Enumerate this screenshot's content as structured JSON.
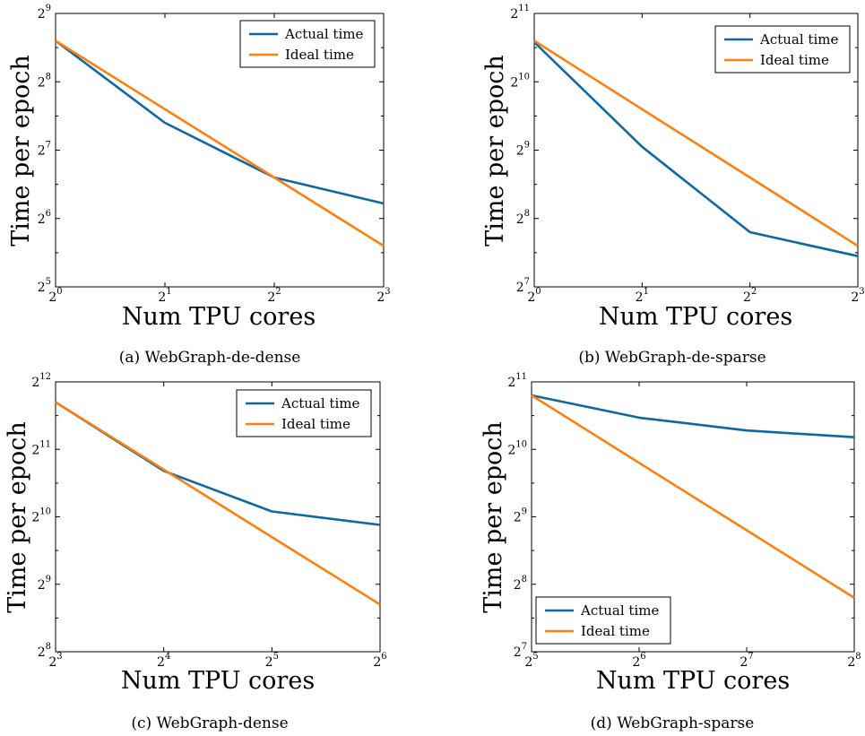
{
  "colors": {
    "actual": "#0f67a3",
    "ideal": "#fd7f0e",
    "axis": "#000000"
  },
  "chart_data": [
    {
      "type": "line",
      "caption": "(a) WebGraph-de-dense",
      "xlabel": "Num TPU cores",
      "ylabel": "Time per epoch",
      "xscale": "log2",
      "yscale": "log2",
      "xlim_exp": [
        0,
        3
      ],
      "ylim_exp": [
        5,
        9
      ],
      "xticks": [
        {
          "base": "2",
          "exp": "0"
        },
        {
          "base": "2",
          "exp": "1"
        },
        {
          "base": "2",
          "exp": "2"
        },
        {
          "base": "2",
          "exp": "3"
        }
      ],
      "yticks": [
        {
          "base": "2",
          "exp": "5"
        },
        {
          "base": "2",
          "exp": "6"
        },
        {
          "base": "2",
          "exp": "7"
        },
        {
          "base": "2",
          "exp": "8"
        },
        {
          "base": "2",
          "exp": "9"
        }
      ],
      "x_exp": [
        0,
        1,
        2,
        3
      ],
      "series": [
        {
          "name": "Actual time",
          "y_exp": [
            8.6,
            7.4,
            6.6,
            6.22
          ]
        },
        {
          "name": "Ideal time",
          "y_exp": [
            8.6,
            7.6,
            6.6,
            5.6
          ]
        }
      ],
      "legend": "upper right"
    },
    {
      "type": "line",
      "caption": "(b) WebGraph-de-sparse",
      "xlabel": "Num TPU cores",
      "ylabel": "Time per epoch",
      "xscale": "log2",
      "yscale": "log2",
      "xlim_exp": [
        0,
        3
      ],
      "ylim_exp": [
        7,
        11
      ],
      "xticks": [
        {
          "base": "2",
          "exp": "0"
        },
        {
          "base": "2",
          "exp": "1"
        },
        {
          "base": "2",
          "exp": "2"
        },
        {
          "base": "2",
          "exp": "3"
        }
      ],
      "yticks": [
        {
          "base": "2",
          "exp": "7"
        },
        {
          "base": "2",
          "exp": "8"
        },
        {
          "base": "2",
          "exp": "9"
        },
        {
          "base": "2",
          "exp": "10"
        },
        {
          "base": "2",
          "exp": "11"
        }
      ],
      "x_exp": [
        0,
        1,
        2,
        3
      ],
      "series": [
        {
          "name": "Actual time",
          "y_exp": [
            10.58,
            9.05,
            7.8,
            7.45
          ]
        },
        {
          "name": "Ideal time",
          "y_exp": [
            10.6,
            9.6,
            8.6,
            7.6
          ]
        }
      ],
      "legend": "upper right"
    },
    {
      "type": "line",
      "caption": "(c) WebGraph-dense",
      "xlabel": "Num TPU cores",
      "ylabel": "Time per epoch",
      "xscale": "log2",
      "yscale": "log2",
      "xlim_exp": [
        3,
        6
      ],
      "ylim_exp": [
        8,
        12
      ],
      "xticks": [
        {
          "base": "2",
          "exp": "3"
        },
        {
          "base": "2",
          "exp": "4"
        },
        {
          "base": "2",
          "exp": "5"
        },
        {
          "base": "2",
          "exp": "6"
        }
      ],
      "yticks": [
        {
          "base": "2",
          "exp": "8"
        },
        {
          "base": "2",
          "exp": "9"
        },
        {
          "base": "2",
          "exp": "10"
        },
        {
          "base": "2",
          "exp": "11"
        },
        {
          "base": "2",
          "exp": "12"
        }
      ],
      "x_exp": [
        3,
        4,
        5,
        6
      ],
      "series": [
        {
          "name": "Actual time",
          "y_exp": [
            11.7,
            10.68,
            10.08,
            9.88
          ]
        },
        {
          "name": "Ideal time",
          "y_exp": [
            11.7,
            10.7,
            9.7,
            8.7
          ]
        }
      ],
      "legend": "upper right"
    },
    {
      "type": "line",
      "caption": "(d) WebGraph-sparse",
      "xlabel": "Num TPU cores",
      "ylabel": "Time per epoch",
      "xscale": "log2",
      "yscale": "log2",
      "xlim_exp": [
        5,
        8
      ],
      "ylim_exp": [
        7,
        11
      ],
      "xticks": [
        {
          "base": "2",
          "exp": "5"
        },
        {
          "base": "2",
          "exp": "6"
        },
        {
          "base": "2",
          "exp": "7"
        },
        {
          "base": "2",
          "exp": "8"
        }
      ],
      "yticks": [
        {
          "base": "2",
          "exp": "7"
        },
        {
          "base": "2",
          "exp": "8"
        },
        {
          "base": "2",
          "exp": "9"
        },
        {
          "base": "2",
          "exp": "10"
        },
        {
          "base": "2",
          "exp": "11"
        }
      ],
      "x_exp": [
        5,
        6,
        7,
        8
      ],
      "series": [
        {
          "name": "Actual time",
          "y_exp": [
            10.8,
            10.47,
            10.28,
            10.18
          ]
        },
        {
          "name": "Ideal time",
          "y_exp": [
            10.8,
            9.8,
            8.8,
            7.8
          ]
        }
      ],
      "legend": "lower left"
    }
  ]
}
